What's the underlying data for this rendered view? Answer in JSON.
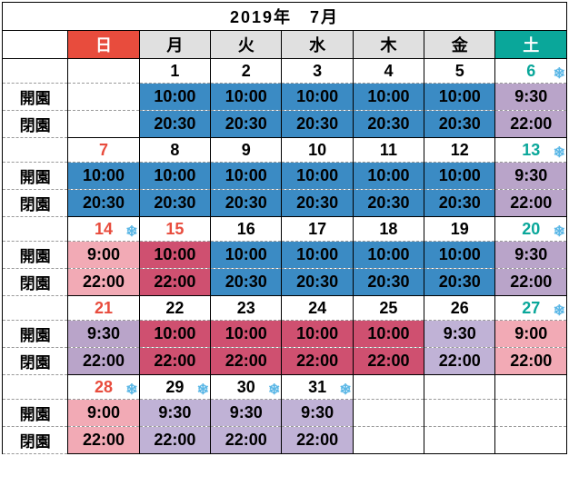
{
  "title": "2019年　7月",
  "row_labels": {
    "open": "開園",
    "close": "閉園"
  },
  "dow": [
    {
      "label": "",
      "cls": ""
    },
    {
      "label": "日",
      "cls": "bg-sun-hdr"
    },
    {
      "label": "月",
      "cls": "bg-whdr"
    },
    {
      "label": "火",
      "cls": "bg-whdr"
    },
    {
      "label": "水",
      "cls": "bg-whdr"
    },
    {
      "label": "木",
      "cls": "bg-whdr"
    },
    {
      "label": "金",
      "cls": "bg-whdr"
    },
    {
      "label": "土",
      "cls": "bg-sat-hdr"
    }
  ],
  "weeks": [
    {
      "days": [
        {
          "date": "",
          "date_cls": "",
          "open": "",
          "close": "",
          "cell_cls": "",
          "snow": false
        },
        {
          "date": "1",
          "date_cls": "",
          "open": "10:00",
          "close": "20:30",
          "cell_cls": "bg-blue",
          "snow": false
        },
        {
          "date": "2",
          "date_cls": "",
          "open": "10:00",
          "close": "20:30",
          "cell_cls": "bg-blue",
          "snow": false
        },
        {
          "date": "3",
          "date_cls": "",
          "open": "10:00",
          "close": "20:30",
          "cell_cls": "bg-blue",
          "snow": false
        },
        {
          "date": "4",
          "date_cls": "",
          "open": "10:00",
          "close": "20:30",
          "cell_cls": "bg-blue",
          "snow": false
        },
        {
          "date": "5",
          "date_cls": "",
          "open": "10:00",
          "close": "20:30",
          "cell_cls": "bg-blue",
          "snow": false
        },
        {
          "date": "6",
          "date_cls": "txt-teal",
          "open": "9:30",
          "close": "22:00",
          "cell_cls": "bg-purple",
          "snow": true
        }
      ]
    },
    {
      "days": [
        {
          "date": "7",
          "date_cls": "txt-red",
          "open": "10:00",
          "close": "20:30",
          "cell_cls": "bg-blue",
          "snow": false
        },
        {
          "date": "8",
          "date_cls": "",
          "open": "10:00",
          "close": "20:30",
          "cell_cls": "bg-blue",
          "snow": false
        },
        {
          "date": "9",
          "date_cls": "",
          "open": "10:00",
          "close": "20:30",
          "cell_cls": "bg-blue",
          "snow": false
        },
        {
          "date": "10",
          "date_cls": "",
          "open": "10:00",
          "close": "20:30",
          "cell_cls": "bg-blue",
          "snow": false
        },
        {
          "date": "11",
          "date_cls": "",
          "open": "10:00",
          "close": "20:30",
          "cell_cls": "bg-blue",
          "snow": false
        },
        {
          "date": "12",
          "date_cls": "",
          "open": "10:00",
          "close": "20:30",
          "cell_cls": "bg-blue",
          "snow": false
        },
        {
          "date": "13",
          "date_cls": "txt-teal",
          "open": "9:30",
          "close": "22:00",
          "cell_cls": "bg-purple",
          "snow": true
        }
      ]
    },
    {
      "days": [
        {
          "date": "14",
          "date_cls": "txt-red",
          "open": "9:00",
          "close": "22:00",
          "cell_cls": "bg-pink",
          "snow": true
        },
        {
          "date": "15",
          "date_cls": "txt-red",
          "open": "10:00",
          "close": "22:00",
          "cell_cls": "bg-rose",
          "snow": false
        },
        {
          "date": "16",
          "date_cls": "",
          "open": "10:00",
          "close": "20:30",
          "cell_cls": "bg-blue",
          "snow": false
        },
        {
          "date": "17",
          "date_cls": "",
          "open": "10:00",
          "close": "20:30",
          "cell_cls": "bg-blue",
          "snow": false
        },
        {
          "date": "18",
          "date_cls": "",
          "open": "10:00",
          "close": "20:30",
          "cell_cls": "bg-blue",
          "snow": false
        },
        {
          "date": "19",
          "date_cls": "",
          "open": "10:00",
          "close": "20:30",
          "cell_cls": "bg-blue",
          "snow": false
        },
        {
          "date": "20",
          "date_cls": "txt-teal",
          "open": "9:30",
          "close": "22:00",
          "cell_cls": "bg-purple",
          "snow": true
        }
      ]
    },
    {
      "days": [
        {
          "date": "21",
          "date_cls": "txt-red",
          "open": "9:30",
          "close": "22:00",
          "cell_cls": "bg-purple",
          "snow": false
        },
        {
          "date": "22",
          "date_cls": "",
          "open": "10:00",
          "close": "22:00",
          "cell_cls": "bg-rose",
          "snow": false
        },
        {
          "date": "23",
          "date_cls": "",
          "open": "10:00",
          "close": "22:00",
          "cell_cls": "bg-rose",
          "snow": false
        },
        {
          "date": "24",
          "date_cls": "",
          "open": "10:00",
          "close": "22:00",
          "cell_cls": "bg-rose",
          "snow": false
        },
        {
          "date": "25",
          "date_cls": "",
          "open": "10:00",
          "close": "22:00",
          "cell_cls": "bg-rose",
          "snow": false
        },
        {
          "date": "26",
          "date_cls": "",
          "open": "9:30",
          "close": "22:00",
          "cell_cls": "bg-lav",
          "snow": false
        },
        {
          "date": "27",
          "date_cls": "txt-teal",
          "open": "9:00",
          "close": "22:00",
          "cell_cls": "bg-pink",
          "snow": true
        }
      ]
    },
    {
      "days": [
        {
          "date": "28",
          "date_cls": "txt-red",
          "open": "9:00",
          "close": "22:00",
          "cell_cls": "bg-pink",
          "snow": true
        },
        {
          "date": "29",
          "date_cls": "",
          "open": "9:30",
          "close": "22:00",
          "cell_cls": "bg-lav",
          "snow": true
        },
        {
          "date": "30",
          "date_cls": "",
          "open": "9:30",
          "close": "22:00",
          "cell_cls": "bg-lav",
          "snow": true
        },
        {
          "date": "31",
          "date_cls": "",
          "open": "9:30",
          "close": "22:00",
          "cell_cls": "bg-lav",
          "snow": true
        },
        {
          "date": "",
          "date_cls": "",
          "open": "",
          "close": "",
          "cell_cls": "",
          "snow": false
        },
        {
          "date": "",
          "date_cls": "",
          "open": "",
          "close": "",
          "cell_cls": "",
          "snow": false
        },
        {
          "date": "",
          "date_cls": "",
          "open": "",
          "close": "",
          "cell_cls": "",
          "snow": false
        }
      ]
    }
  ]
}
